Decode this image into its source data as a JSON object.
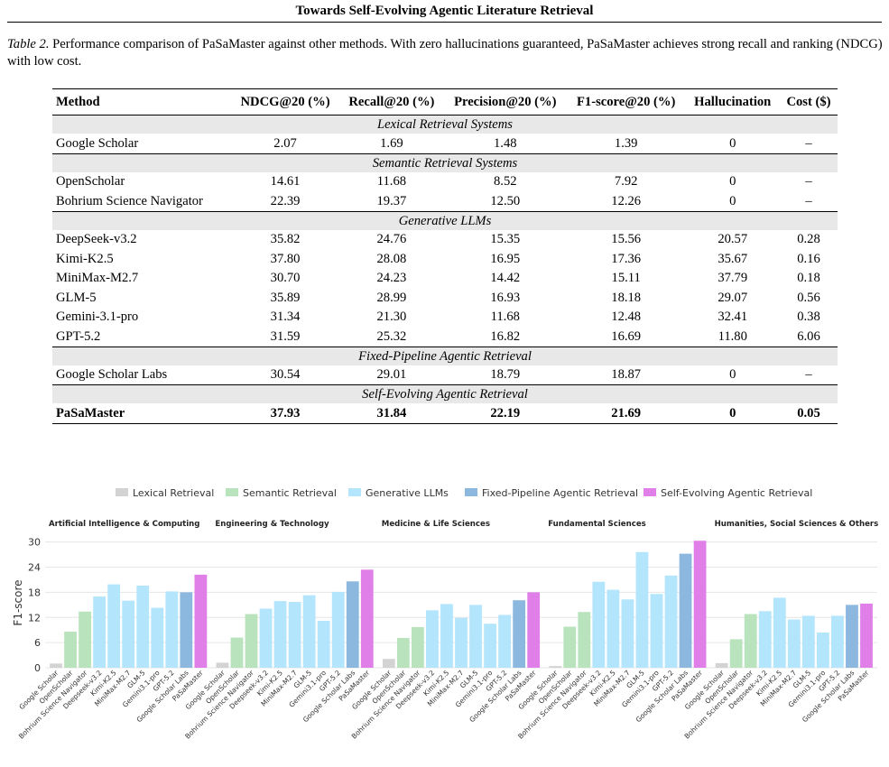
{
  "running_head": "Towards Self-Evolving Agentic Literature Retrieval",
  "caption": {
    "label": "Table 2.",
    "text": " Performance comparison of PaSaMaster against other methods. With zero hallucinations guaranteed, PaSaMaster achieves strong recall and ranking (NDCG) with low cost."
  },
  "table": {
    "headers": [
      "Method",
      "NDCG@20 (%)",
      "Recall@20 (%)",
      "Precision@20 (%)",
      "F1-score@20 (%)",
      "Hallucination",
      "Cost ($)"
    ],
    "groups": [
      {
        "name": "Lexical Retrieval Systems",
        "rows": [
          [
            "Google Scholar",
            "2.07",
            "1.69",
            "1.48",
            "1.39",
            "0",
            "–"
          ]
        ]
      },
      {
        "name": "Semantic Retrieval Systems",
        "rows": [
          [
            "OpenScholar",
            "14.61",
            "11.68",
            "8.52",
            "7.92",
            "0",
            "–"
          ],
          [
            "Bohrium Science Navigator",
            "22.39",
            "19.37",
            "12.50",
            "12.26",
            "0",
            "–"
          ]
        ]
      },
      {
        "name": "Generative LLMs",
        "rows": [
          [
            "DeepSeek-v3.2",
            "35.82",
            "24.76",
            "15.35",
            "15.56",
            "20.57",
            "0.28"
          ],
          [
            "Kimi-K2.5",
            "37.80",
            "28.08",
            "16.95",
            "17.36",
            "35.67",
            "0.16"
          ],
          [
            "MiniMax-M2.7",
            "30.70",
            "24.23",
            "14.42",
            "15.11",
            "37.79",
            "0.18"
          ],
          [
            "GLM-5",
            "35.89",
            "28.99",
            "16.93",
            "18.18",
            "29.07",
            "0.56"
          ],
          [
            "Gemini-3.1-pro",
            "31.34",
            "21.30",
            "11.68",
            "12.48",
            "32.41",
            "0.38"
          ],
          [
            "GPT-5.2",
            "31.59",
            "25.32",
            "16.82",
            "16.69",
            "11.80",
            "6.06"
          ]
        ]
      },
      {
        "name": "Fixed-Pipeline Agentic Retrieval",
        "rows": [
          [
            "Google Scholar Labs",
            "30.54",
            "29.01",
            "18.79",
            "18.87",
            "0",
            "–"
          ]
        ]
      },
      {
        "name": "Self-Evolving Agentic Retrieval",
        "bold": true,
        "rows": [
          [
            "PaSaMaster",
            "37.93",
            "31.84",
            "22.19",
            "21.69",
            "0",
            "0.05"
          ]
        ]
      }
    ]
  },
  "colors": {
    "Lexical": "#d3d3d3",
    "Semantic": "#b9e3bc",
    "Generative": "#b3e5fc",
    "Fixed": "#8cb8e0",
    "Self": "#e07fe8"
  },
  "chart_data": {
    "type": "bar",
    "ylabel": "F1-score",
    "ylim": [
      0,
      31
    ],
    "yticks": [
      0,
      6,
      12,
      18,
      24,
      30
    ],
    "grid": true,
    "legend_position": "top-center",
    "legend": [
      {
        "name": "Lexical Retrieval",
        "key": "Lexical"
      },
      {
        "name": "Semantic Retrieval",
        "key": "Semantic"
      },
      {
        "name": "Generative LLMs",
        "key": "Generative"
      },
      {
        "name": "Fixed-Pipeline Agentic Retrieval",
        "key": "Fixed"
      },
      {
        "name": "Self-Evolving Agentic Retrieval",
        "key": "Self"
      }
    ],
    "categories": [
      "Google Scholar",
      "OpenScholar",
      "Bohrium Science Navigator",
      "Deepseek-v3.2",
      "Kimi-K2.5",
      "MiniMax-M2.7",
      "GLM-5",
      "Gemini3.1-pro",
      "GPT-5.2",
      "Google Scholar Labs",
      "PaSaMaster"
    ],
    "category_groups": [
      "Lexical",
      "Semantic",
      "Semantic",
      "Generative",
      "Generative",
      "Generative",
      "Generative",
      "Generative",
      "Generative",
      "Fixed",
      "Self"
    ],
    "panels": [
      {
        "title": "Artificial Intelligence & Computing",
        "values": [
          1.0,
          8.6,
          13.4,
          17.0,
          19.9,
          16.0,
          19.6,
          14.3,
          18.2,
          18.0,
          22.2
        ]
      },
      {
        "title": "Engineering & Technology",
        "values": [
          1.2,
          7.2,
          12.8,
          14.1,
          15.9,
          15.7,
          17.3,
          11.2,
          18.1,
          20.6,
          23.4
        ]
      },
      {
        "title": "Medicine & Life Sciences",
        "values": [
          2.1,
          7.1,
          9.7,
          13.7,
          15.2,
          11.9,
          15.0,
          10.5,
          12.6,
          16.1,
          18.0
        ]
      },
      {
        "title": "Fundamental Sciences",
        "values": [
          0.4,
          9.8,
          13.3,
          20.5,
          18.6,
          16.3,
          27.6,
          17.6,
          22.0,
          27.2,
          30.3
        ]
      },
      {
        "title": "Humanities, Social Sciences & Others",
        "values": [
          1.1,
          6.8,
          12.8,
          13.5,
          16.7,
          11.5,
          12.4,
          8.4,
          12.4,
          15.0,
          15.3
        ]
      }
    ]
  }
}
